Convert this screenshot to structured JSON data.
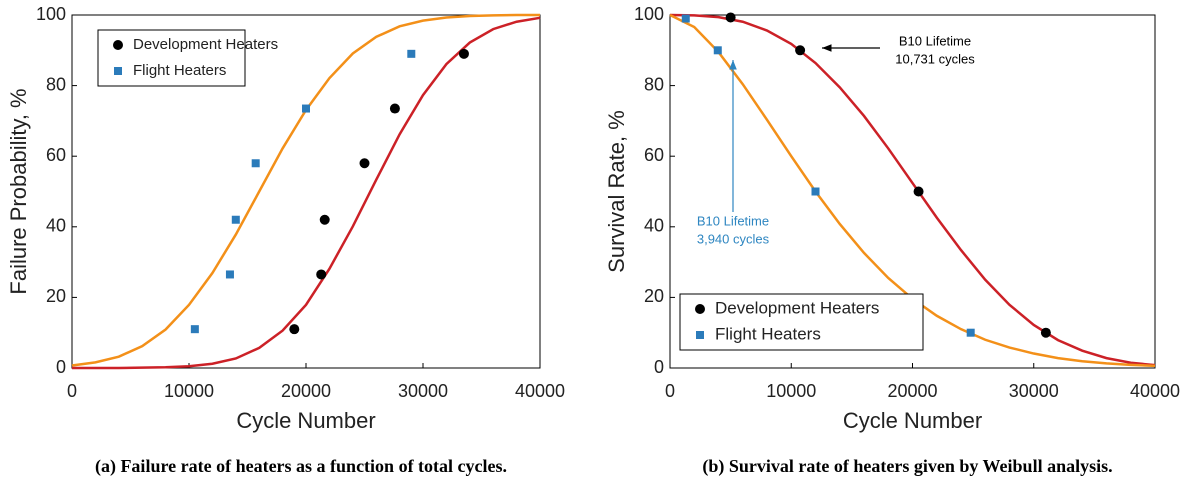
{
  "chart_data": [
    {
      "type": "line",
      "xlabel": "Cycle Number",
      "ylabel": "Failure Probability, %",
      "caption": "(a) Failure rate of heaters as a function of total cycles.",
      "xlim": [
        0,
        40000
      ],
      "ylim": [
        0,
        100
      ],
      "xticks": [
        0,
        10000,
        20000,
        30000,
        40000
      ],
      "yticks": [
        0,
        20,
        40,
        60,
        80,
        100
      ],
      "legend": "upper left",
      "series": [
        {
          "color": "#f39019",
          "marker": "none",
          "x": [
            0,
            2000,
            4000,
            6000,
            8000,
            10000,
            12000,
            14000,
            16000,
            18000,
            20000,
            22000,
            24000,
            26000,
            28000,
            30000,
            32000,
            34000,
            36000,
            38000,
            40000
          ],
          "values": [
            0.7,
            1.6,
            3.2,
            6.2,
            10.9,
            17.9,
            26.9,
            37.8,
            50,
            62.2,
            73.1,
            82.1,
            89.1,
            93.8,
            96.8,
            98.4,
            99.3,
            99.7,
            99.9,
            100,
            100
          ]
        },
        {
          "color": "#cc2127",
          "marker": "none",
          "x": [
            0,
            2000,
            4000,
            6000,
            8000,
            10000,
            12000,
            14000,
            16000,
            18000,
            20000,
            22000,
            24000,
            26000,
            28000,
            30000,
            32000,
            34000,
            36000,
            38000,
            40000
          ],
          "values": [
            0,
            0,
            0,
            0.1,
            0.2,
            0.5,
            1.2,
            2.7,
            5.7,
            10.6,
            17.9,
            28.1,
            40.1,
            53.3,
            66.2,
            77.3,
            86.1,
            92.2,
            96,
            98.1,
            99.2
          ]
        },
        {
          "name": "Development Heaters",
          "color": "#000000",
          "marker": "circle",
          "x": [
            19000,
            21300,
            21600,
            25000,
            27600,
            33500
          ],
          "values": [
            11,
            26.5,
            42,
            58,
            73.5,
            89
          ]
        },
        {
          "name": "Flight Heaters",
          "color": "#2b7bba",
          "marker": "square",
          "x": [
            10500,
            13500,
            14000,
            15700,
            20000,
            29000
          ],
          "values": [
            11,
            26.5,
            42,
            58,
            73.5,
            89
          ]
        }
      ]
    },
    {
      "type": "line",
      "xlabel": "Cycle Number",
      "ylabel": "Survival Rate, %",
      "caption": "(b) Survival rate of heaters given by Weibull analysis.",
      "xlim": [
        0,
        40000
      ],
      "ylim": [
        0,
        100
      ],
      "xticks": [
        0,
        10000,
        20000,
        30000,
        40000
      ],
      "yticks": [
        0,
        20,
        40,
        60,
        80,
        100
      ],
      "legend": "lower left",
      "series": [
        {
          "color": "#cc2127",
          "marker": "none",
          "x": [
            0,
            2000,
            4000,
            6000,
            8000,
            10000,
            12000,
            14000,
            16000,
            18000,
            20000,
            22000,
            24000,
            26000,
            28000,
            30000,
            32000,
            34000,
            36000,
            38000,
            40000
          ],
          "values": [
            100,
            99.9,
            99.4,
            98.1,
            95.6,
            91.8,
            86.4,
            79.5,
            71.4,
            62.2,
            52.4,
            42.6,
            33.4,
            25,
            17.9,
            12.2,
            7.9,
            4.9,
            2.8,
            1.5,
            0.8
          ]
        },
        {
          "color": "#f39019",
          "marker": "none",
          "x": [
            0,
            2000,
            4000,
            6000,
            8000,
            10000,
            12000,
            14000,
            16000,
            18000,
            20000,
            22000,
            24000,
            26000,
            28000,
            30000,
            32000,
            34000,
            36000,
            38000,
            40000
          ],
          "values": [
            100,
            96.6,
            89.5,
            80.4,
            70.3,
            60,
            50,
            40.8,
            32.6,
            25.5,
            19.6,
            14.8,
            11,
            8,
            5.8,
            4.1,
            2.8,
            1.9,
            1.3,
            0.9,
            0.6
          ]
        },
        {
          "name": "Development Heaters",
          "color": "#000000",
          "marker": "circle",
          "x": [
            5000,
            10731,
            20500,
            31000
          ],
          "values": [
            99.3,
            90,
            50,
            10
          ]
        },
        {
          "name": "Flight Heaters",
          "color": "#2b7bba",
          "marker": "square",
          "x": [
            1300,
            3940,
            12000,
            24800
          ],
          "values": [
            99,
            90,
            50,
            10
          ]
        }
      ],
      "annotations": [
        {
          "lines": [
            "B10 Lifetime",
            "10,731 cycles"
          ],
          "color": "#000000"
        },
        {
          "lines": [
            "B10 Lifetime",
            "3,940 cycles"
          ],
          "color": "#2e86c1"
        }
      ]
    }
  ]
}
